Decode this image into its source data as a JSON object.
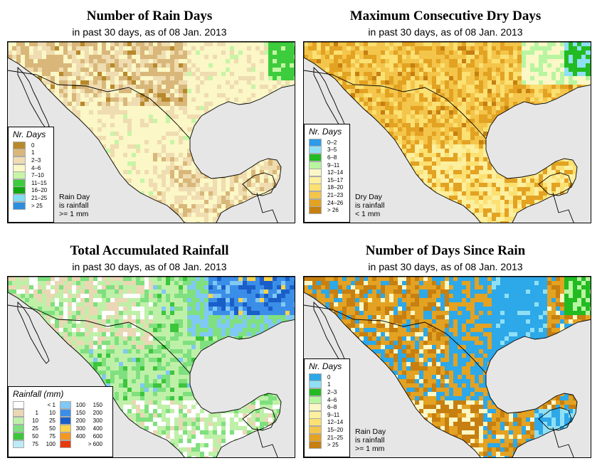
{
  "panels": [
    {
      "id": "rain-days",
      "title": "Number of Rain Days",
      "subtitle": "in past 30 days, as of  08 Jan. 2013",
      "legend_title": "Nr. Days",
      "legend": [
        {
          "label": "0",
          "color": "#b8892b"
        },
        {
          "label": "1",
          "color": "#d9b77a"
        },
        {
          "label": "2–3",
          "color": "#efdcb0"
        },
        {
          "label": "4–6",
          "color": "#fbf7c6"
        },
        {
          "label": "7–10",
          "color": "#c6f5a6"
        },
        {
          "label": "11–15",
          "color": "#3ccc3c"
        },
        {
          "label": "16–20",
          "color": "#10a810"
        },
        {
          "label": "21–25",
          "color": "#80dcf5"
        },
        {
          "label": "> 25",
          "color": "#2d8ee0"
        }
      ],
      "note": [
        "Rain Day",
        "is rainfall",
        ">= 1 mm"
      ]
    },
    {
      "id": "dry-days",
      "title": "Maximum Consecutive Dry Days",
      "subtitle": "in past 30 days, as of  08 Jan. 2013",
      "legend_title": "Nr. Days",
      "legend": [
        {
          "label": "0–2",
          "color": "#2d9be8"
        },
        {
          "label": "3–5",
          "color": "#8fe0f5"
        },
        {
          "label": "6–8",
          "color": "#22bb22"
        },
        {
          "label": "9–11",
          "color": "#b8f5a0"
        },
        {
          "label": "12–14",
          "color": "#fbf7c6"
        },
        {
          "label": "15–17",
          "color": "#fcef9e"
        },
        {
          "label": "18–20",
          "color": "#fbe072"
        },
        {
          "label": "21–23",
          "color": "#f3c54a"
        },
        {
          "label": "24–26",
          "color": "#e3a222"
        },
        {
          "label": "> 26",
          "color": "#c67f10"
        }
      ],
      "note": [
        "Dry Day",
        "is rainfall",
        "< 1 mm"
      ]
    },
    {
      "id": "rainfall",
      "title": "Total Accumulated Rainfall",
      "subtitle": "in past 30 days, as of  08 Jan. 2013",
      "legend_title": "Rainfall (mm)",
      "legend_left": [
        {
          "a": "",
          "b": "< 1",
          "color": "#ffffff"
        },
        {
          "a": "1",
          "b": "10",
          "color": "#ead7b4"
        },
        {
          "a": "10",
          "b": "25",
          "color": "#bff0a8"
        },
        {
          "a": "25",
          "b": "50",
          "color": "#7ee07e"
        },
        {
          "a": "50",
          "b": "75",
          "color": "#3cc63c"
        },
        {
          "a": "75",
          "b": "100",
          "color": "#bdeaf8"
        }
      ],
      "legend_right": [
        {
          "a": "100",
          "b": "150",
          "color": "#80c8f5"
        },
        {
          "a": "150",
          "b": "200",
          "color": "#3b8ee8"
        },
        {
          "a": "200",
          "b": "300",
          "color": "#1a5ec8"
        },
        {
          "a": "300",
          "b": "400",
          "color": "#fbd34a"
        },
        {
          "a": "400",
          "b": "600",
          "color": "#f39622"
        },
        {
          "a": "",
          "b": "> 600",
          "color": "#e83a10"
        }
      ]
    },
    {
      "id": "since-rain",
      "title": "Number of Days Since Rain",
      "subtitle": "in past 30 days, as of  08 Jan. 2013",
      "legend_title": "Nr. Days",
      "legend": [
        {
          "label": "0",
          "color": "#2da8e8"
        },
        {
          "label": "1",
          "color": "#8fe0f5"
        },
        {
          "label": "2–3",
          "color": "#22bb22"
        },
        {
          "label": "4–6",
          "color": "#b8f5a0"
        },
        {
          "label": "6–8",
          "color": "#fbf7c6"
        },
        {
          "label": "9–11",
          "color": "#fcef9e"
        },
        {
          "label": "12–14",
          "color": "#fbe072"
        },
        {
          "label": "15–20",
          "color": "#f3c54a"
        },
        {
          "label": "21–25",
          "color": "#e3a222"
        },
        {
          "label": "> 25",
          "color": "#c67f10"
        }
      ],
      "note": [
        "Rain Day",
        "is rainfall",
        ">= 1 mm"
      ]
    }
  ],
  "colors": {
    "ocean": "#e6e6e6",
    "border": "#000000"
  }
}
